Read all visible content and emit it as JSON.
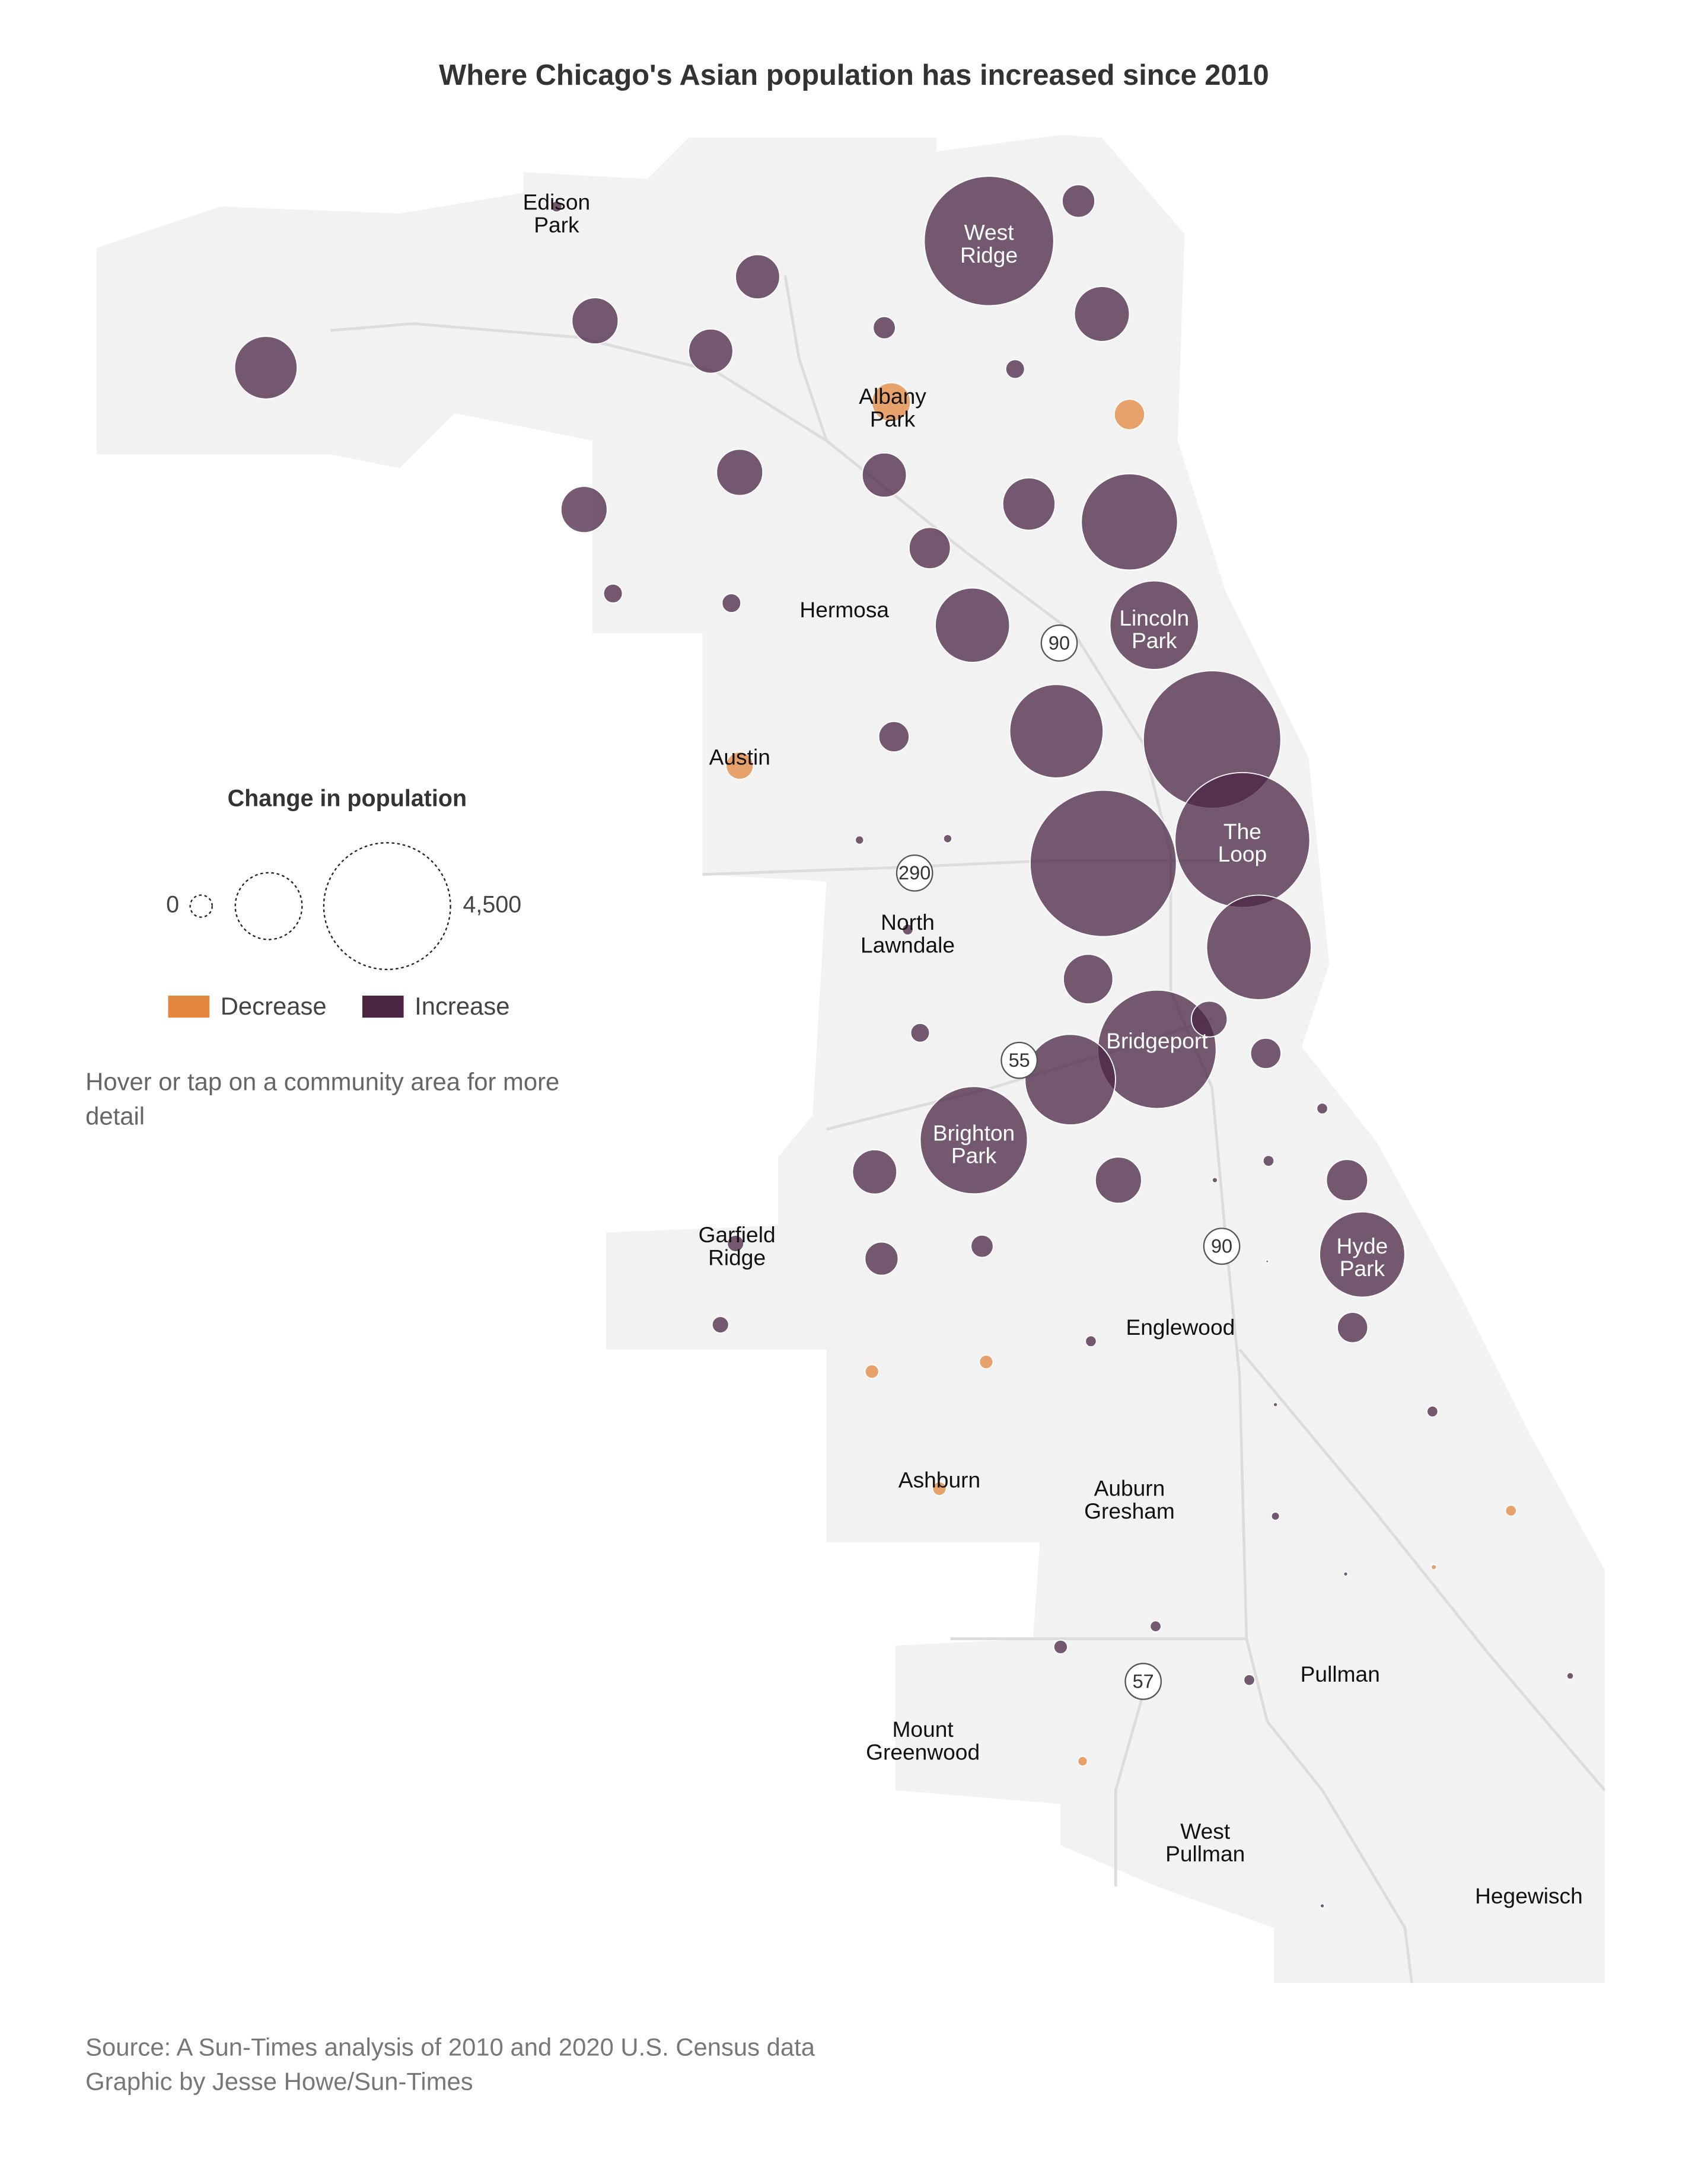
{
  "title": "Where Chicago's Asian population has increased since 2010",
  "legend": {
    "title": "Change in population",
    "sizes": [
      0,
      1250,
      4500
    ],
    "size_labels": [
      "0",
      "4,500"
    ],
    "decrease_label": "Decrease",
    "increase_label": "Increase",
    "decrease_color": "#e3873e",
    "increase_color": "#4a2443"
  },
  "note": [
    "Hover or tap on a community area for more",
    "detail"
  ],
  "highways": [
    "90",
    "290",
    "55",
    "90",
    "57"
  ],
  "places": [
    [
      "Edison",
      "Park"
    ],
    [
      "West",
      "Ridge"
    ],
    [
      "Albany",
      "Park"
    ],
    [
      "Hermosa"
    ],
    [
      "Lincoln",
      "Park"
    ],
    [
      "Austin"
    ],
    [
      "The",
      "Loop"
    ],
    [
      "North",
      "Lawndale"
    ],
    [
      "Bridgeport"
    ],
    [
      "Brighton",
      "Park"
    ],
    [
      "Garfield",
      "Ridge"
    ],
    [
      "Hyde",
      "Park"
    ],
    [
      "Englewood"
    ],
    [
      "Ashburn"
    ],
    [
      "Auburn",
      "Gresham"
    ],
    [
      "Pullman"
    ],
    [
      "Mount",
      "Greenwood"
    ],
    [
      "West",
      "Pullman"
    ],
    [
      "Hegewisch"
    ]
  ],
  "changes": [
    1100,
    600,
    550,
    550,
    4700,
    300,
    850,
    140,
    100,
    -420,
    -260,
    600,
    600,
    550,
    770,
    2600,
    480,
    100,
    100,
    1550,
    2200,
    2450,
    5300,
    260,
    -210,
    20,
    20,
    6000,
    5100,
    3070,
    34,
    690,
    100,
    3930,
    360,
    2300,
    260,
    3230,
    550,
    600,
    34,
    34,
    8,
    480,
    310,
    140,
    77,
    2040,
    2,
    77,
    260,
    34,
    -53,
    -53,
    5,
    34,
    -53,
    19,
    -34,
    5,
    -8,
    34,
    53,
    34,
    13,
    -26,
    5,
    34
  ],
  "source": [
    "Source: A Sun-Times analysis of 2010 and 2020 U.S. Census data",
    "Graphic by Jesse Howe/Sun-Times"
  ]
}
